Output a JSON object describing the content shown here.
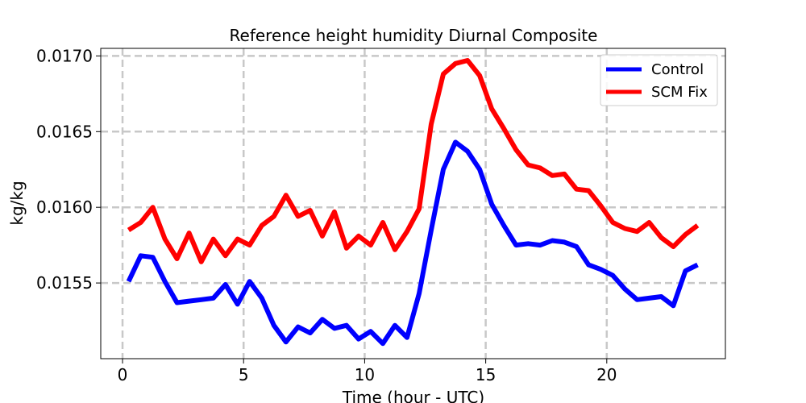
{
  "chart_data": {
    "type": "line",
    "title": "Reference height humidity Diurnal Composite",
    "xlabel": "Time (hour - UTC)",
    "ylabel": "kg/kg",
    "xlim": [
      -0.9,
      24.9
    ],
    "ylim": [
      0.015,
      0.01705
    ],
    "x_ticks": [
      0,
      5,
      10,
      15,
      20
    ],
    "x_tick_labels": [
      "0",
      "5",
      "10",
      "15",
      "20"
    ],
    "y_ticks": [
      0.0155,
      0.016,
      0.0165,
      0.017
    ],
    "y_tick_labels": [
      "0.0155",
      "0.0160",
      "0.0165",
      "0.0170"
    ],
    "grid": true,
    "legend": "top-right",
    "x": [
      0.25,
      0.75,
      1.25,
      1.75,
      2.25,
      2.75,
      3.25,
      3.75,
      4.25,
      4.75,
      5.25,
      5.75,
      6.25,
      6.75,
      7.25,
      7.75,
      8.25,
      8.75,
      9.25,
      9.75,
      10.25,
      10.75,
      11.25,
      11.75,
      12.25,
      12.75,
      13.25,
      13.75,
      14.25,
      14.75,
      15.25,
      15.75,
      16.25,
      16.75,
      17.25,
      17.75,
      18.25,
      18.75,
      19.25,
      19.75,
      20.25,
      20.75,
      21.25,
      21.75,
      22.25,
      22.75,
      23.25,
      23.75
    ],
    "series": [
      {
        "name": "Control",
        "color": "#0000ff",
        "values": [
          0.01551,
          0.01568,
          0.01567,
          0.01551,
          0.01537,
          0.01538,
          0.01539,
          0.0154,
          0.01549,
          0.01536,
          0.01551,
          0.0154,
          0.01522,
          0.01511,
          0.01521,
          0.01517,
          0.01526,
          0.0152,
          0.01522,
          0.01513,
          0.01518,
          0.0151,
          0.01522,
          0.01514,
          0.01543,
          0.01585,
          0.01625,
          0.01643,
          0.01637,
          0.01625,
          0.01602,
          0.01588,
          0.01575,
          0.01576,
          0.01575,
          0.01578,
          0.01577,
          0.01574,
          0.01562,
          0.01559,
          0.01555,
          0.01546,
          0.01539,
          0.0154,
          0.01541,
          0.01535,
          0.01558,
          0.01562
        ]
      },
      {
        "name": "SCM Fix",
        "color": "#ff0000",
        "values": [
          0.01585,
          0.0159,
          0.016,
          0.01579,
          0.01566,
          0.01583,
          0.01564,
          0.01579,
          0.01568,
          0.01579,
          0.01575,
          0.01588,
          0.01594,
          0.01608,
          0.01594,
          0.01598,
          0.01581,
          0.01597,
          0.01573,
          0.01581,
          0.01575,
          0.0159,
          0.01572,
          0.01584,
          0.01599,
          0.01655,
          0.01688,
          0.01695,
          0.01697,
          0.01687,
          0.01665,
          0.01652,
          0.01638,
          0.01628,
          0.01626,
          0.01621,
          0.01622,
          0.01612,
          0.01611,
          0.01601,
          0.0159,
          0.01586,
          0.01584,
          0.0159,
          0.0158,
          0.01574,
          0.01582,
          0.01588
        ]
      }
    ]
  }
}
